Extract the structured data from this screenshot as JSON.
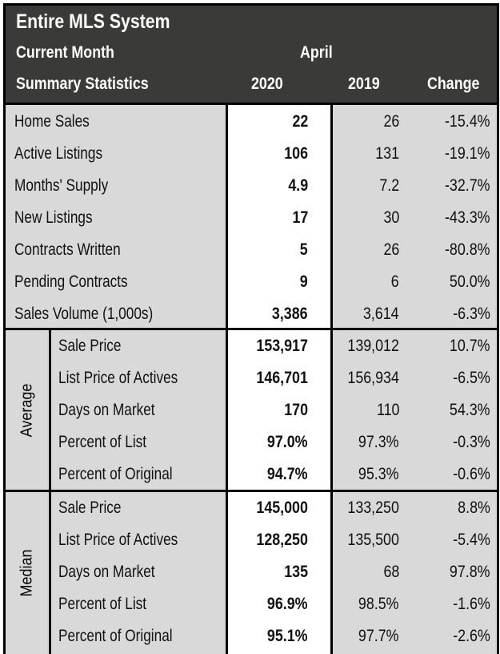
{
  "header": {
    "title": "Entire MLS System",
    "current_month_label": "Current Month",
    "month": "April",
    "summary_label": "Summary Statistics",
    "col_2020": "2020",
    "col_2019": "2019",
    "col_change": "Change"
  },
  "summary": {
    "rows": [
      {
        "label": "Home Sales",
        "v2020": "22",
        "v2019": "26",
        "change": "-15.4%"
      },
      {
        "label": "Active Listings",
        "v2020": "106",
        "v2019": "131",
        "change": "-19.1%"
      },
      {
        "label": "Months' Supply",
        "v2020": "4.9",
        "v2019": "7.2",
        "change": "-32.7%"
      },
      {
        "label": "New Listings",
        "v2020": "17",
        "v2019": "30",
        "change": "-43.3%"
      },
      {
        "label": "Contracts Written",
        "v2020": "5",
        "v2019": "26",
        "change": "-80.8%"
      },
      {
        "label": "Pending Contracts",
        "v2020": "9",
        "v2019": "6",
        "change": "50.0%"
      },
      {
        "label": "Sales Volume (1,000s)",
        "v2020": "3,386",
        "v2019": "3,614",
        "change": "-6.3%"
      }
    ]
  },
  "average": {
    "label": "Average",
    "rows": [
      {
        "label": "Sale Price",
        "v2020": "153,917",
        "v2019": "139,012",
        "change": "10.7%"
      },
      {
        "label": "List Price of Actives",
        "v2020": "146,701",
        "v2019": "156,934",
        "change": "-6.5%"
      },
      {
        "label": "Days on Market",
        "v2020": "170",
        "v2019": "110",
        "change": "54.3%"
      },
      {
        "label": "Percent of List",
        "v2020": "97.0%",
        "v2019": "97.3%",
        "change": "-0.3%"
      },
      {
        "label": "Percent of Original",
        "v2020": "94.7%",
        "v2019": "95.3%",
        "change": "-0.6%"
      }
    ]
  },
  "median": {
    "label": "Median",
    "rows": [
      {
        "label": "Sale Price",
        "v2020": "145,000",
        "v2019": "133,250",
        "change": "8.8%"
      },
      {
        "label": "List Price of Actives",
        "v2020": "128,250",
        "v2019": "135,500",
        "change": "-5.4%"
      },
      {
        "label": "Days on Market",
        "v2020": "135",
        "v2019": "68",
        "change": "97.8%"
      },
      {
        "label": "Percent of List",
        "v2020": "96.9%",
        "v2019": "98.5%",
        "change": "-1.6%"
      },
      {
        "label": "Percent of Original",
        "v2020": "95.1%",
        "v2019": "97.7%",
        "change": "-2.6%"
      }
    ]
  }
}
